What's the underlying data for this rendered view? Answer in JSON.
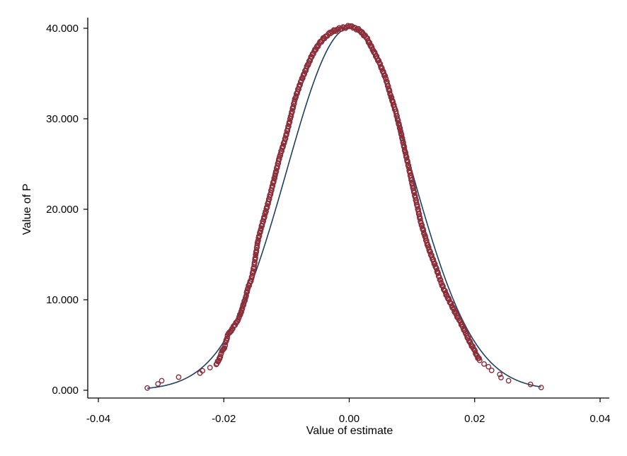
{
  "chart_data": {
    "type": "scatter",
    "title": "",
    "xlabel": "Value of estimate",
    "ylabel": "Value of P",
    "xlim": [
      -0.04,
      0.04
    ],
    "ylim": [
      0,
      40
    ],
    "x_ticks": [
      -0.04,
      -0.02,
      0.0,
      0.02,
      0.04
    ],
    "x_tick_labels": [
      "-0.04",
      "-0.02",
      "0.00",
      "0.02",
      "0.04"
    ],
    "y_ticks": [
      0,
      10,
      20,
      30,
      40
    ],
    "y_tick_labels": [
      "0.000",
      "10.000",
      "20.000",
      "30.000",
      "40.000"
    ],
    "grid": false,
    "legend": "none",
    "colors": {
      "markers": "#8b2e3a",
      "curve": "#1f3f5f"
    },
    "curve": {
      "type": "normal-density",
      "mean": 0.0,
      "sd": 0.00997,
      "xrange": [
        -0.0322,
        0.0306
      ]
    },
    "series": [
      {
        "marker": "hollow-circle",
        "points": [
          [
            -0.0322,
            0.25
          ],
          [
            -0.0305,
            0.7
          ],
          [
            -0.0299,
            1.05
          ],
          [
            -0.0272,
            1.45
          ],
          [
            -0.0238,
            1.9
          ],
          [
            -0.0234,
            2.15
          ],
          [
            -0.0222,
            2.5
          ],
          [
            -0.0212,
            2.85
          ],
          [
            -0.0208,
            3.3
          ],
          [
            -0.0206,
            3.7
          ],
          [
            -0.0204,
            4.1
          ],
          [
            -0.0201,
            4.5
          ],
          [
            -0.0198,
            4.9
          ],
          [
            -0.0197,
            5.3
          ],
          [
            -0.0195,
            5.7
          ],
          [
            -0.0194,
            6.1
          ],
          [
            -0.019,
            6.4
          ],
          [
            -0.0187,
            6.8
          ],
          [
            -0.0182,
            7.2
          ],
          [
            -0.0179,
            7.6
          ],
          [
            -0.0176,
            8.0
          ],
          [
            -0.0173,
            8.5
          ],
          [
            -0.0171,
            9.0
          ],
          [
            -0.0168,
            9.6
          ],
          [
            -0.0165,
            10.3
          ],
          [
            -0.0162,
            11.2
          ],
          [
            -0.0156,
            12.3
          ],
          [
            -0.0152,
            13.6
          ],
          [
            -0.0149,
            15.0
          ],
          [
            -0.0146,
            16.4
          ],
          [
            -0.0141,
            17.8
          ],
          [
            -0.0134,
            19.5
          ],
          [
            -0.0126,
            21.6
          ],
          [
            -0.0118,
            23.8
          ],
          [
            -0.0111,
            25.8
          ],
          [
            -0.0102,
            27.8
          ],
          [
            -0.0094,
            30.0
          ],
          [
            -0.0086,
            32.3
          ],
          [
            -0.0077,
            34.1
          ],
          [
            -0.0067,
            35.8
          ],
          [
            -0.0058,
            37.2
          ],
          [
            -0.0048,
            38.3
          ],
          [
            -0.0038,
            39.1
          ],
          [
            -0.0028,
            39.6
          ],
          [
            -0.0018,
            39.9
          ],
          [
            -0.0008,
            40.1
          ],
          [
            0.0,
            40.2
          ],
          [
            0.0008,
            40.1
          ],
          [
            0.0018,
            39.7
          ],
          [
            0.0028,
            38.9
          ],
          [
            0.0038,
            37.6
          ],
          [
            0.0048,
            36.2
          ],
          [
            0.0058,
            34.5
          ],
          [
            0.0066,
            32.6
          ],
          [
            0.0074,
            30.8
          ],
          [
            0.0082,
            28.6
          ],
          [
            0.0089,
            26.4
          ],
          [
            0.0095,
            24.6
          ],
          [
            0.0101,
            22.6
          ],
          [
            0.0108,
            20.5
          ],
          [
            0.0114,
            18.6
          ],
          [
            0.012,
            17.2
          ],
          [
            0.0126,
            15.8
          ],
          [
            0.0132,
            14.7
          ],
          [
            0.0138,
            13.6
          ],
          [
            0.0143,
            12.6
          ],
          [
            0.0147,
            11.8
          ],
          [
            0.0152,
            11.0
          ],
          [
            0.0156,
            10.4
          ],
          [
            0.0161,
            9.7
          ],
          [
            0.0166,
            9.0
          ],
          [
            0.0171,
            8.3
          ],
          [
            0.0176,
            7.7
          ],
          [
            0.0181,
            7.0
          ],
          [
            0.0185,
            6.4
          ],
          [
            0.0189,
            5.8
          ],
          [
            0.0194,
            5.1
          ],
          [
            0.0199,
            4.5
          ],
          [
            0.0203,
            3.9
          ],
          [
            0.0208,
            3.3
          ],
          [
            0.0215,
            2.9
          ],
          [
            0.0222,
            2.6
          ],
          [
            0.0227,
            2.2
          ],
          [
            0.024,
            1.75
          ],
          [
            0.0242,
            1.4
          ],
          [
            0.0254,
            1.05
          ],
          [
            0.0289,
            0.65
          ],
          [
            0.0306,
            0.3
          ]
        ]
      }
    ]
  }
}
